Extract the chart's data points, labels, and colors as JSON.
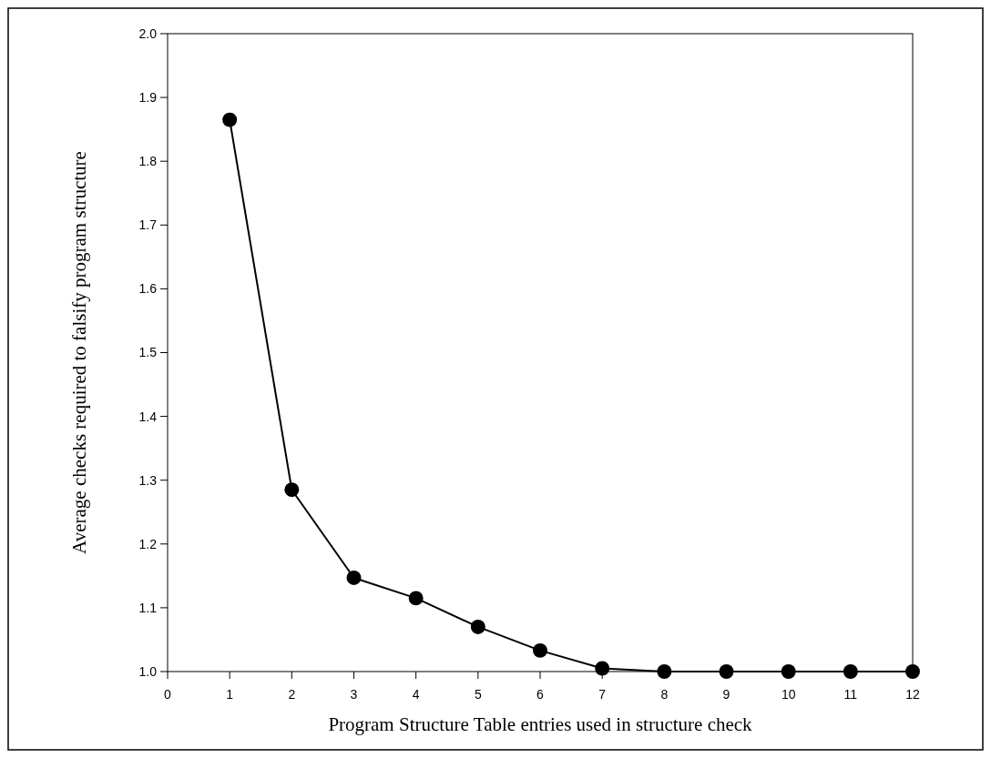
{
  "chart_data": {
    "type": "line",
    "xlabel": "Program Structure Table entries used in structure check",
    "ylabel": "Average checks required to falsify program structure",
    "x": [
      1,
      2,
      3,
      4,
      5,
      6,
      7,
      8,
      9,
      10,
      11,
      12
    ],
    "series": [
      {
        "color": "#000000",
        "values": [
          1.865,
          1.285,
          1.147,
          1.115,
          1.07,
          1.033,
          1.005,
          1.0,
          1.0,
          1.0,
          1.0,
          1.0
        ]
      }
    ],
    "xlim": [
      0,
      12
    ],
    "ylim": [
      1.0,
      2.0
    ],
    "xticks": [
      0,
      1,
      2,
      3,
      4,
      5,
      6,
      7,
      8,
      9,
      10,
      11,
      12
    ],
    "yticks": [
      {
        "value": 1.0,
        "label": "1.0"
      },
      {
        "value": 1.1,
        "label": "1.1"
      },
      {
        "value": 1.2,
        "label": "1.2"
      },
      {
        "value": 1.3,
        "label": "1.3"
      },
      {
        "value": 1.4,
        "label": "1.4"
      },
      {
        "value": 1.5,
        "label": "1.5"
      },
      {
        "value": 1.6,
        "label": "1.6"
      },
      {
        "value": 1.7,
        "label": "1.7"
      },
      {
        "value": 1.8,
        "label": "1.8"
      },
      {
        "value": 1.9,
        "label": "1.9"
      },
      {
        "value": 2.0,
        "label": "2.0"
      }
    ],
    "marker": "circle",
    "grid": false
  }
}
